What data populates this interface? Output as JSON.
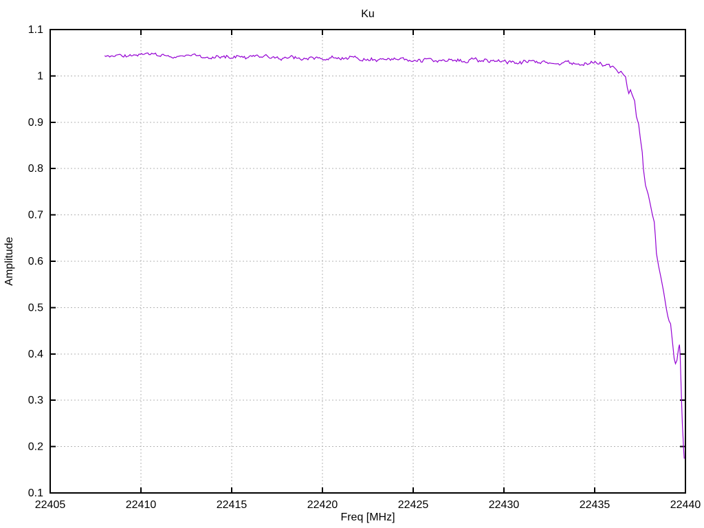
{
  "chart_data": {
    "type": "line",
    "title": "Ku",
    "xlabel": "Freq [MHz]",
    "ylabel": "Amplitude",
    "xlim": [
      22405,
      22440
    ],
    "ylim": [
      0.1,
      1.1
    ],
    "xticks": [
      22405,
      22410,
      22415,
      22420,
      22425,
      22430,
      22435,
      22440
    ],
    "xtick_labels": [
      "22405",
      "22410",
      "22415",
      "22420",
      "22425",
      "22430",
      "22435",
      "22440"
    ],
    "yticks": [
      0.1,
      0.2,
      0.3,
      0.4,
      0.5,
      0.6,
      0.7,
      0.8,
      0.9,
      1.0,
      1.1
    ],
    "ytick_labels": [
      "0.1",
      "0.2",
      "0.3",
      "0.4",
      "0.5",
      "0.6",
      "0.7",
      "0.8",
      "0.9",
      "1",
      "1.1"
    ],
    "grid": true,
    "legend": "none",
    "line_color": "#9400d3",
    "grid_color": "#b3b3b3",
    "axis_color": "#000000",
    "series": [
      {
        "name": "Ku",
        "x_start": 22408.0,
        "x_end": 22439.93,
        "baseline_anchors": [
          [
            22408.0,
            1.044
          ],
          [
            22410.0,
            1.0435
          ],
          [
            22412.0,
            1.0425
          ],
          [
            22414.0,
            1.0415
          ],
          [
            22416.0,
            1.0405
          ],
          [
            22418.0,
            1.039
          ],
          [
            22420.0,
            1.0375
          ],
          [
            22422.0,
            1.036
          ],
          [
            22424.0,
            1.0345
          ],
          [
            22426.0,
            1.0335
          ],
          [
            22428.0,
            1.033
          ],
          [
            22430.0,
            1.032
          ],
          [
            22431.3,
            1.0285
          ],
          [
            22432.5,
            1.031
          ],
          [
            22434.0,
            1.0265
          ],
          [
            22435.2,
            1.0305
          ],
          [
            22435.7,
            1.024
          ],
          [
            22436.1,
            1.016
          ]
        ],
        "noise": {
          "seed": 9,
          "step": 0.07,
          "jitter": 0.004,
          "wander": 0.006,
          "x_end": 22436.1
        },
        "drop_points": [
          [
            22436.2,
            1.013
          ],
          [
            22436.32,
            1.006
          ],
          [
            22436.45,
            1.01
          ],
          [
            22436.6,
            1.002
          ],
          [
            22436.7,
            0.998
          ],
          [
            22436.8,
            0.974
          ],
          [
            22436.88,
            0.962
          ],
          [
            22436.97,
            0.97
          ],
          [
            22437.07,
            0.959
          ],
          [
            22437.2,
            0.946
          ],
          [
            22437.3,
            0.912
          ],
          [
            22437.42,
            0.896
          ],
          [
            22437.52,
            0.864
          ],
          [
            22437.62,
            0.835
          ],
          [
            22437.68,
            0.8
          ],
          [
            22437.8,
            0.764
          ],
          [
            22437.95,
            0.744
          ],
          [
            22438.07,
            0.722
          ],
          [
            22438.18,
            0.7
          ],
          [
            22438.28,
            0.685
          ],
          [
            22438.34,
            0.655
          ],
          [
            22438.4,
            0.617
          ],
          [
            22438.52,
            0.59
          ],
          [
            22438.66,
            0.563
          ],
          [
            22438.8,
            0.534
          ],
          [
            22438.95,
            0.497
          ],
          [
            22439.03,
            0.481
          ],
          [
            22439.1,
            0.471
          ],
          [
            22439.18,
            0.465
          ],
          [
            22439.28,
            0.428
          ],
          [
            22439.38,
            0.39
          ],
          [
            22439.45,
            0.379
          ],
          [
            22439.53,
            0.386
          ],
          [
            22439.62,
            0.412
          ],
          [
            22439.67,
            0.42
          ],
          [
            22439.71,
            0.398
          ],
          [
            22439.75,
            0.345
          ],
          [
            22439.79,
            0.292
          ],
          [
            22439.83,
            0.25
          ],
          [
            22439.87,
            0.218
          ],
          [
            22439.9,
            0.193
          ],
          [
            22439.93,
            0.174
          ]
        ]
      }
    ]
  }
}
